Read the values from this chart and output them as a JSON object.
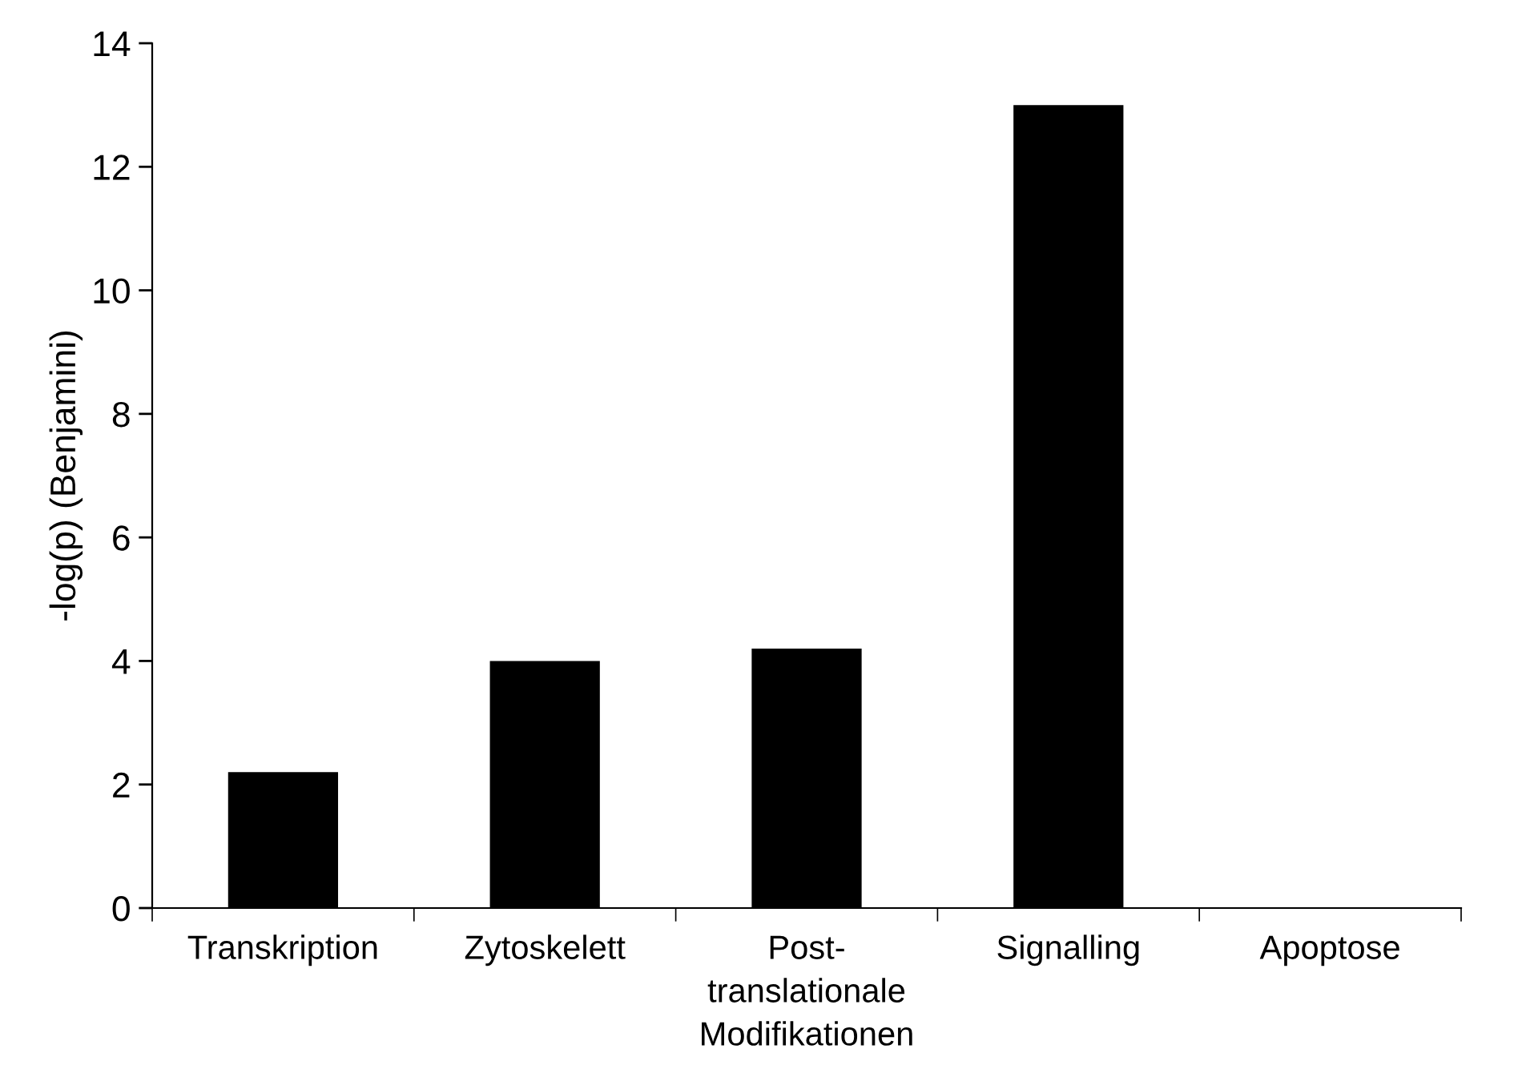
{
  "chart_data": {
    "type": "bar",
    "ylabel": "-log(p) (Benjamini)",
    "categories": [
      "Transkription",
      "Zytoskelett",
      "Post-\ntranslationale\nModifikationen",
      "Signalling",
      "Apoptose"
    ],
    "values": [
      2.2,
      4.0,
      4.2,
      13.0,
      0
    ],
    "color": "#000000",
    "ylim": [
      0,
      14
    ],
    "yticks": [
      0,
      2,
      4,
      6,
      8,
      10,
      12,
      14
    ],
    "grid": false,
    "legend": false
  }
}
